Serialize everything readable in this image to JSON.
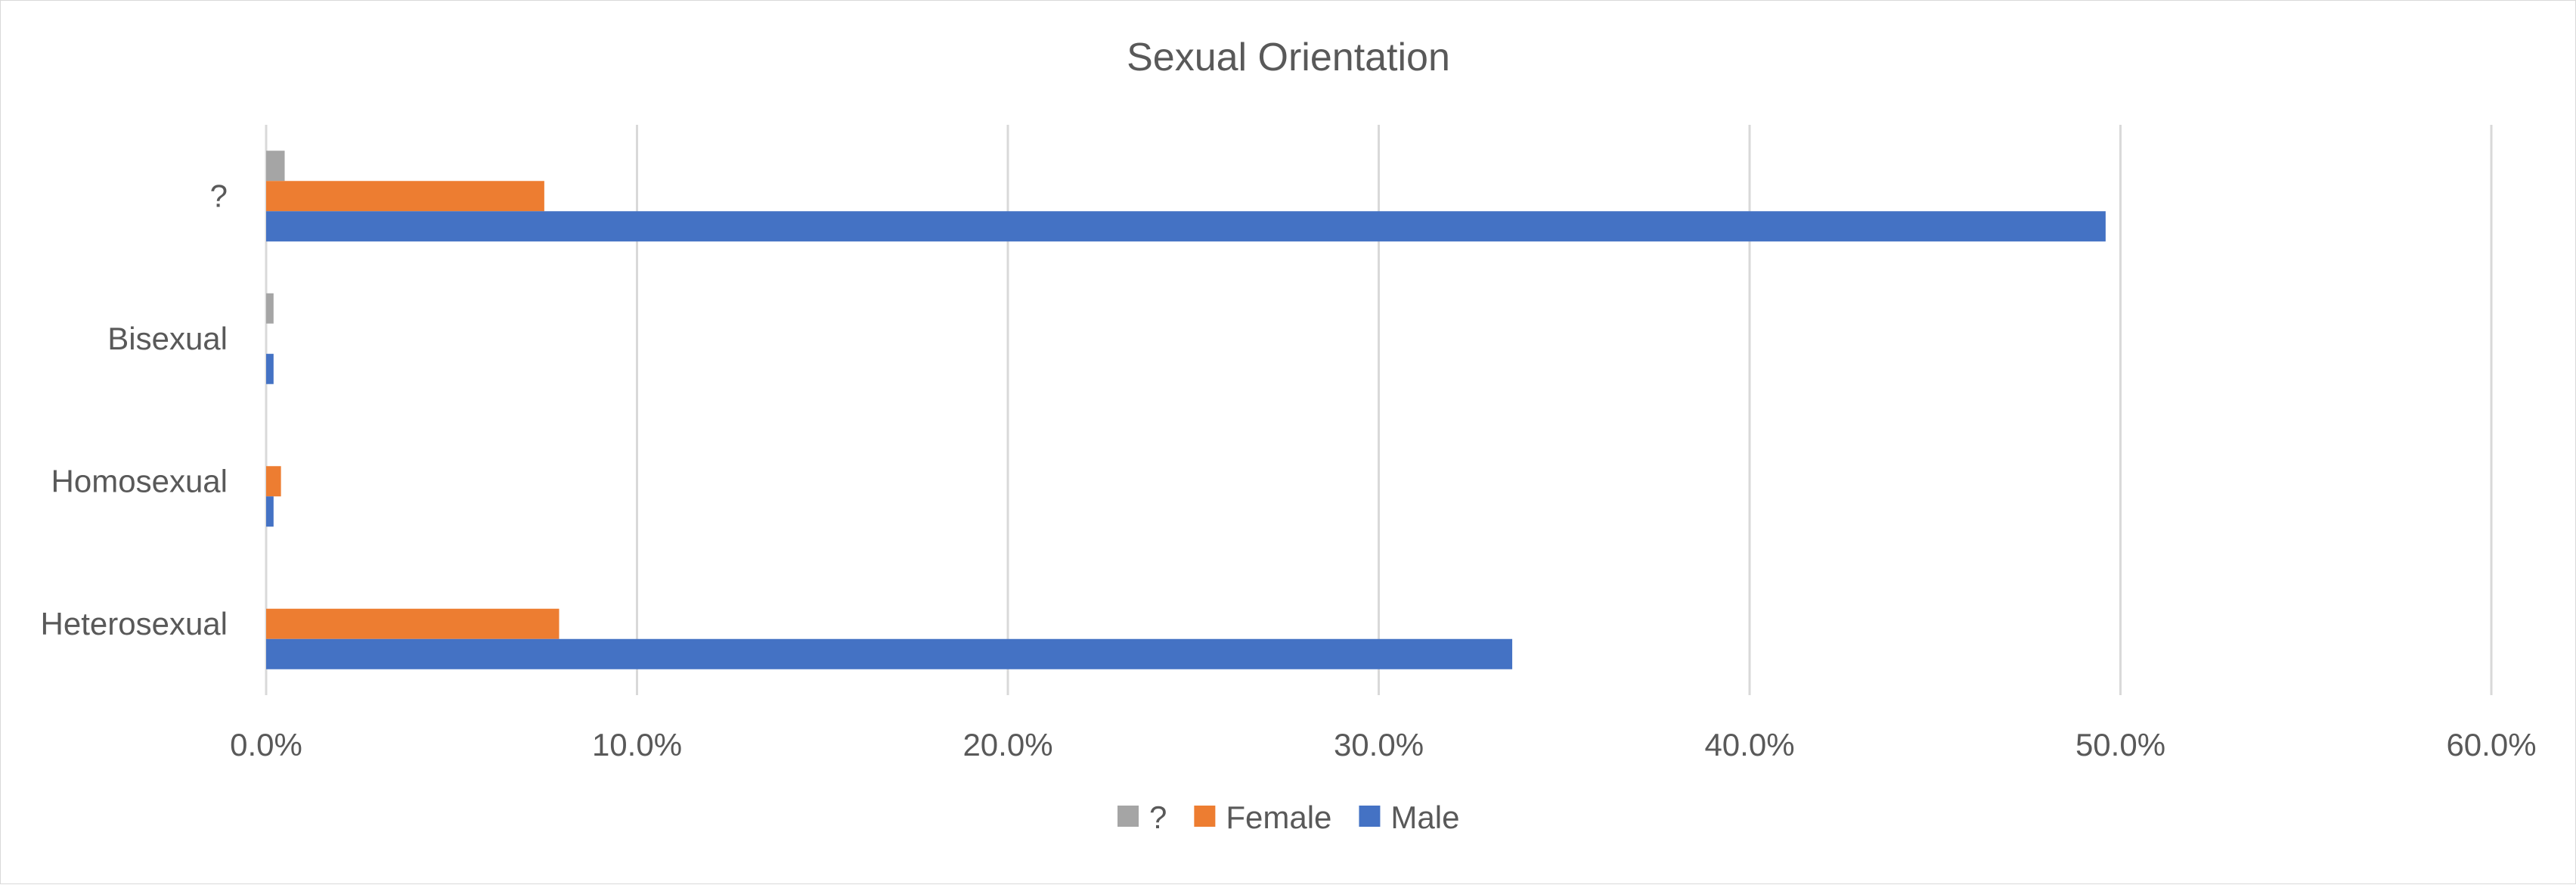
{
  "chart_data": {
    "type": "bar",
    "orientation": "horizontal",
    "title": "Sexual Orientation",
    "categories": [
      "Heterosexual",
      "Homosexual",
      "Bisexual",
      "?"
    ],
    "series": [
      {
        "name": "Male",
        "color": "#4472C4",
        "values": [
          0.336,
          0.002,
          0.002,
          0.496
        ]
      },
      {
        "name": "Female",
        "color": "#ED7D31",
        "values": [
          0.079,
          0.004,
          0.0,
          0.075
        ]
      },
      {
        "name": "?",
        "color": "#A5A5A5",
        "values": [
          0.0,
          0.0,
          0.002,
          0.005
        ]
      }
    ],
    "xlim": [
      0,
      0.6
    ],
    "xticks": [
      0,
      0.1,
      0.2,
      0.3,
      0.4,
      0.5,
      0.6
    ],
    "xtick_labels": [
      "0.0%",
      "10.0%",
      "20.0%",
      "30.0%",
      "40.0%",
      "50.0%",
      "60.0%"
    ],
    "grid": true,
    "legend": {
      "position": "bottom",
      "order": [
        "?",
        "Female",
        "Male"
      ]
    }
  }
}
